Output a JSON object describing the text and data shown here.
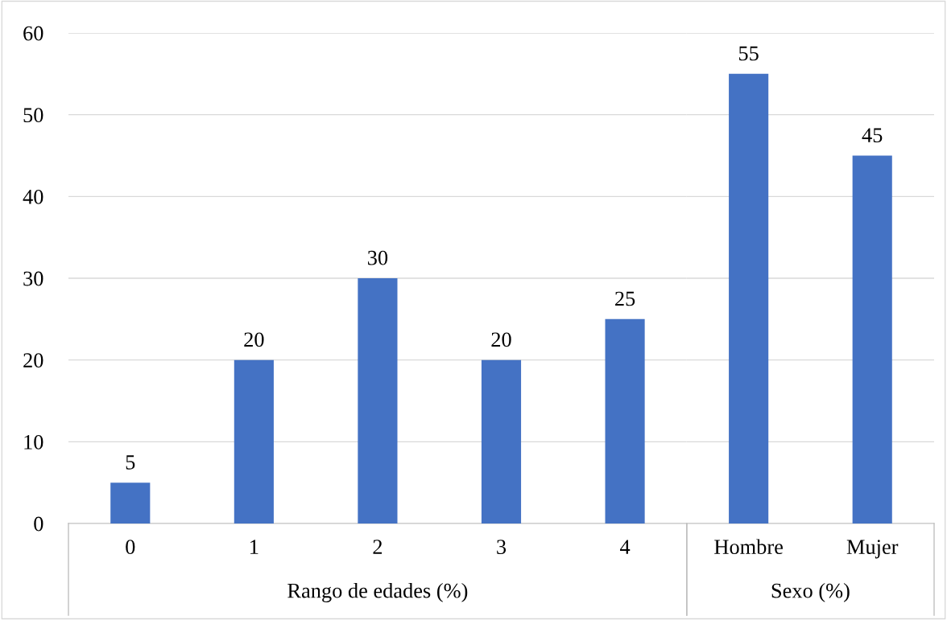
{
  "chart_data": [
    {
      "type": "bar",
      "categories": [
        "0",
        "1",
        "2",
        "3",
        "4"
      ],
      "values": [
        5,
        20,
        30,
        20,
        25
      ],
      "color": "#4472c4",
      "xlabel": "Rango de edades (%)",
      "ylim": [
        0,
        60
      ],
      "yticks": [
        0,
        10,
        20,
        30,
        40,
        50,
        60
      ],
      "grid": "y",
      "data_labels": true
    },
    {
      "type": "bar",
      "categories": [
        "Hombre",
        "Mujer"
      ],
      "values": [
        55,
        45
      ],
      "color": "#4472c4",
      "xlabel": "Sexo (%)",
      "ylim": [
        0,
        60
      ],
      "yticks": [
        0,
        10,
        20,
        30,
        40,
        50,
        60
      ],
      "grid": "y",
      "data_labels": true,
      "tick_labels": "x"
    }
  ]
}
